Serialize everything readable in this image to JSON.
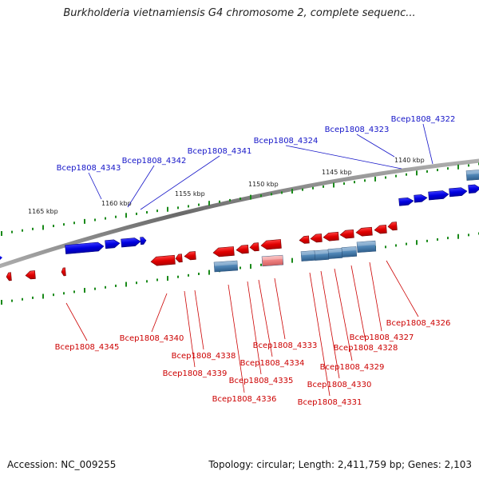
{
  "title": "Burkholderia vietnamiensis G4 chromosome 2, complete sequenc...",
  "footer": {
    "accession": "Accession: NC_009255",
    "summary": "Topology: circular; Length: 2,411,759 bp; Genes: 2,103"
  },
  "scale_labels": [
    "1165 kbp",
    "1160 kbp",
    "1155 kbp",
    "1150 kbp",
    "1145 kbp",
    "1140 kbp"
  ],
  "genes_forward": [
    "Bcep1808_4343",
    "Bcep1808_4342",
    "Bcep1808_4341",
    "Bcep1808_4324",
    "Bcep1808_4323",
    "Bcep1808_4322"
  ],
  "genes_reverse": [
    "Bcep1808_4345",
    "Bcep1808_4340",
    "Bcep1808_4338",
    "Bcep1808_4339",
    "Bcep1808_4333",
    "Bcep1808_4334",
    "Bcep1808_4335",
    "Bcep1808_4336",
    "Bcep1808_4326",
    "Bcep1808_4327",
    "Bcep1808_4328",
    "Bcep1808_4329",
    "Bcep1808_4330",
    "Bcep1808_4331"
  ],
  "colors": {
    "forward": "#0000ee",
    "reverse": "#ee0000",
    "forward_label": "#1414c8",
    "reverse_label": "#cc0000",
    "backbone": "#888888",
    "ticks": "#1a8a1a",
    "rna": "#4f85b5",
    "pseudo": "#f08a8a"
  }
}
